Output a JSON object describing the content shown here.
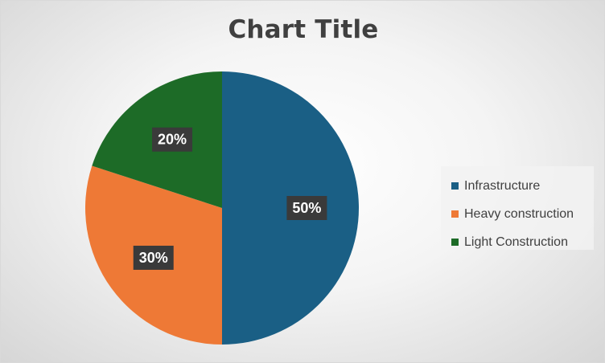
{
  "chart_data": {
    "type": "pie",
    "title": "Chart Title",
    "categories": [
      "Infrastructure",
      "Heavy construction",
      "Light Construction"
    ],
    "values": [
      50,
      30,
      20
    ],
    "data_labels": [
      "50%",
      "30%",
      "20%"
    ],
    "colors": [
      "#1a5f85",
      "#ee7936",
      "#1d6b27"
    ],
    "legend_placement": "right"
  }
}
